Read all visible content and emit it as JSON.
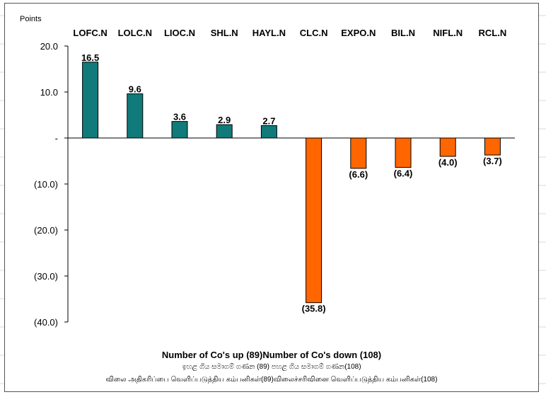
{
  "chart_data": {
    "type": "bar",
    "unit_label": "Points",
    "categories": [
      "LOFC.N",
      "LOLC.N",
      "LIOC.N",
      "SHL.N",
      "HAYL.N",
      "CLC.N",
      "EXPO.N",
      "BIL.N",
      "NIFL.N",
      "RCL.N"
    ],
    "values": [
      16.5,
      9.6,
      3.6,
      2.9,
      2.7,
      -35.8,
      -6.6,
      -6.4,
      -4.0,
      -3.7
    ],
    "value_labels": [
      "16.5",
      "9.6",
      "3.6",
      "2.9",
      "2.7",
      "(35.8)",
      "(6.6)",
      "(6.4)",
      "(4.0)",
      "(3.7)"
    ],
    "ylim": [
      -40,
      20
    ],
    "y_ticks": [
      20,
      10,
      0,
      -10,
      -20,
      -30,
      -40
    ],
    "y_tick_labels": [
      "20.0",
      "10.0",
      "-",
      "(10.0)",
      "(20.0)",
      "(30.0)",
      "(40.0)"
    ],
    "colors": {
      "positive": "#117a7a",
      "negative": "#ff6600",
      "outline": "#000000"
    },
    "grid": false,
    "legend": "none"
  },
  "footer": {
    "main": "Number of Co's up (89)Number of Co's down  (108)",
    "sinhala": "ඉහළ ගිය සමාගම් ගණන (89) පහළ ගිය සමාගම් ගණන(108)",
    "tamil": "விலை அதிகரிப்பை வெளிப்படுத்திய கம்பனிகள்(89)விலைச்சரிவினை வெளிப்படுத்திய கம்பனிகள்(108)"
  }
}
